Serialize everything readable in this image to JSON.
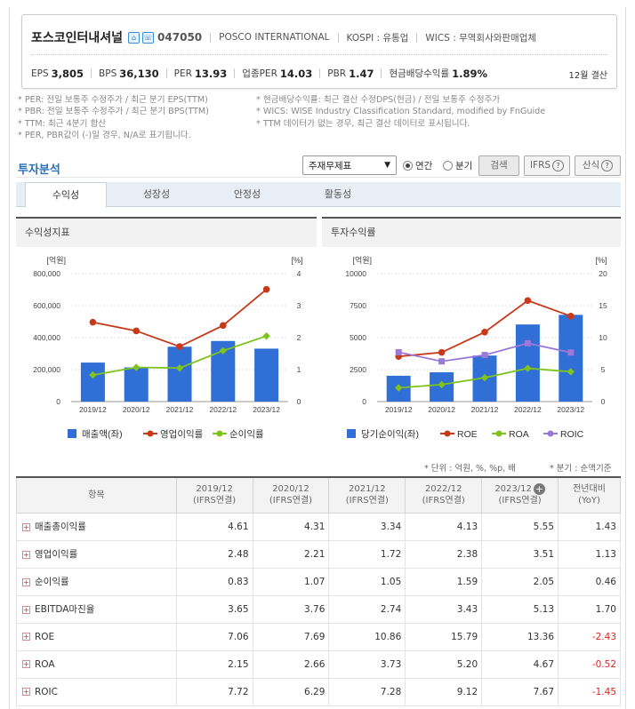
{
  "header": {
    "company_name": "포스코인터내셔널",
    "icon1": "home-icon",
    "icon2": "ir-icon",
    "code": "047050",
    "english_name": "POSCO INTERNATIONAL",
    "market": "KOSPI : 유통업",
    "wics": "WICS : 무역회사와판매업체",
    "metrics": [
      {
        "label": "EPS",
        "value": "3,805"
      },
      {
        "label": "BPS",
        "value": "36,130"
      },
      {
        "label": "PER",
        "value": "13.93"
      },
      {
        "label": "업종PER",
        "value": "14.03"
      },
      {
        "label": "PBR",
        "value": "1.47"
      },
      {
        "label": "현금배당수익률",
        "value": "1.89%"
      }
    ],
    "settlement": "12월 결산"
  },
  "notes_left": [
    "* PER: 전일 보통주 수정주가 / 최근 분기 EPS(TTM)",
    "* PBR: 전일 보통주 수정주가 / 최근 분기 BPS(TTM)",
    "* TTM: 최근 4분기 합산",
    "* PER, PBR값이 (-)일 경우, N/A로 표기됩니다."
  ],
  "notes_right": [
    "* 현금배당수익률: 최근 결산 수정DPS(현금) / 전일 보통주 수정주가",
    "* WICS: WISE Industry Classification Standard, modified by FnGuide",
    "* TTM 데이터가 없는 경우, 최근 결산 데이터로 표시됩니다."
  ],
  "analysis": {
    "title": "투자분석",
    "select_value": "주재무제표",
    "radio_annual": "연간",
    "radio_quarter": "분기",
    "search_label": "검색",
    "ifrs_label": "IFRS",
    "calc_label": "산식",
    "tabs": [
      "수익성",
      "성장성",
      "안정성",
      "활동성"
    ]
  },
  "chart_data": [
    {
      "type": "bar+line",
      "title": "수익성지표",
      "left_unit": "[억원]",
      "right_unit": "[%]",
      "categories": [
        "2019/12",
        "2020/12",
        "2021/12",
        "2022/12",
        "2023/12"
      ],
      "y_ticks": [
        "800,000",
        "600,000",
        "400,000",
        "200,000",
        "0"
      ],
      "y2_ticks": [
        "4",
        "3",
        "2",
        "1",
        "0"
      ],
      "ylim": [
        0,
        800000
      ],
      "y2lim": [
        0,
        4
      ],
      "series": [
        {
          "name": "매출액(좌)",
          "type": "bar",
          "axis": "left",
          "color": "#2f6fd6",
          "values": [
            244000,
            214000,
            343000,
            379000,
            331000
          ]
        },
        {
          "name": "영업이익률",
          "type": "line",
          "axis": "right",
          "color": "#c8391a",
          "values": [
            2.48,
            2.21,
            1.72,
            2.38,
            3.51
          ]
        },
        {
          "name": "순이익률",
          "type": "line",
          "axis": "right",
          "color": "#7fc31c",
          "values": [
            0.83,
            1.07,
            1.05,
            1.59,
            2.05
          ]
        }
      ]
    },
    {
      "type": "bar+line",
      "title": "투자수익률",
      "left_unit": "[억원]",
      "right_unit": "[%]",
      "categories": [
        "2019/12",
        "2020/12",
        "2021/12",
        "2022/12",
        "2023/12"
      ],
      "y_ticks": [
        "10000",
        "7500",
        "5000",
        "2500",
        "0"
      ],
      "y2_ticks": [
        "20",
        "15",
        "10",
        "5",
        "0"
      ],
      "ylim": [
        0,
        10000
      ],
      "y2lim": [
        0,
        20
      ],
      "series": [
        {
          "name": "당기순이익(좌)",
          "type": "bar",
          "axis": "left",
          "color": "#2f6fd6",
          "values": [
            2020,
            2290,
            3600,
            6030,
            6780
          ]
        },
        {
          "name": "ROE",
          "type": "line",
          "axis": "right",
          "color": "#c8391a",
          "values": [
            7.06,
            7.69,
            10.86,
            15.79,
            13.36
          ]
        },
        {
          "name": "ROA",
          "type": "line",
          "axis": "right",
          "color": "#7fc31c",
          "values": [
            2.15,
            2.66,
            3.73,
            5.2,
            4.67
          ]
        },
        {
          "name": "ROIC",
          "type": "line",
          "axis": "right",
          "color": "#9a79d8",
          "values": [
            7.72,
            6.29,
            7.28,
            9.12,
            7.67
          ]
        }
      ]
    }
  ],
  "table": {
    "units_left": "* 단위 : 억원, %, %p, 배",
    "units_right": "* 분기 : 순액기준",
    "header": {
      "item": "항목",
      "cols": [
        {
          "year": "2019/12",
          "basis": "(IFRS연결)"
        },
        {
          "year": "2020/12",
          "basis": "(IFRS연결)"
        },
        {
          "year": "2021/12",
          "basis": "(IFRS연결)"
        },
        {
          "year": "2022/12",
          "basis": "(IFRS연결)"
        },
        {
          "year": "2023/12",
          "basis": "(IFRS연결)"
        }
      ],
      "yoy": "전년대비",
      "yoy_sub": "(YoY)"
    },
    "rows": [
      {
        "name": "매출총이익률",
        "values": [
          "4.61",
          "4.31",
          "3.34",
          "4.13",
          "5.55"
        ],
        "yoy": "1.43",
        "neg": false
      },
      {
        "name": "영업이익률",
        "values": [
          "2.48",
          "2.21",
          "1.72",
          "2.38",
          "3.51"
        ],
        "yoy": "1.13",
        "neg": false
      },
      {
        "name": "순이익률",
        "values": [
          "0.83",
          "1.07",
          "1.05",
          "1.59",
          "2.05"
        ],
        "yoy": "0.46",
        "neg": false
      },
      {
        "name": "EBITDA마진율",
        "values": [
          "3.65",
          "3.76",
          "2.74",
          "3.43",
          "5.13"
        ],
        "yoy": "1.70",
        "neg": false
      },
      {
        "name": "ROE",
        "values": [
          "7.06",
          "7.69",
          "10.86",
          "15.79",
          "13.36"
        ],
        "yoy": "-2.43",
        "neg": true
      },
      {
        "name": "ROA",
        "values": [
          "2.15",
          "2.66",
          "3.73",
          "5.20",
          "4.67"
        ],
        "yoy": "-0.52",
        "neg": true
      },
      {
        "name": "ROIC",
        "values": [
          "7.72",
          "6.29",
          "7.28",
          "9.12",
          "7.67"
        ],
        "yoy": "-1.45",
        "neg": true
      }
    ]
  }
}
